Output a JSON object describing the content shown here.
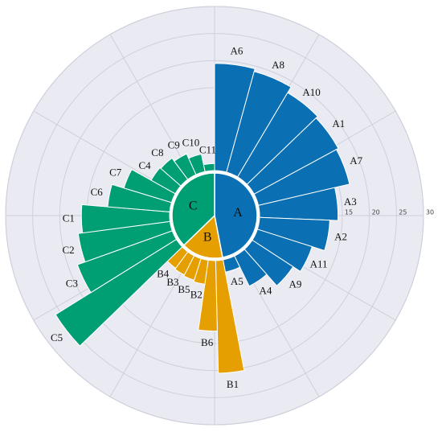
{
  "chart_data": {
    "type": "polar_bar",
    "ylim": [
      0,
      30
    ],
    "yticks": [
      15,
      20,
      25,
      30
    ],
    "groups": [
      {
        "name": "A",
        "color": "#0a6fb3",
        "categories": [
          "A6",
          "A8",
          "A10",
          "A1",
          "A7",
          "A3",
          "A2",
          "A11",
          "A9",
          "A4",
          "A5"
        ],
        "values": [
          19.5,
          19,
          17.8,
          17.4,
          17,
          14.2,
          12.7,
          10.3,
          8.7,
          5.9,
          2
        ]
      },
      {
        "name": "B",
        "color": "#e69f00",
        "categories": [
          "B1",
          "B6",
          "B2",
          "B5",
          "B3",
          "B4"
        ],
        "values": [
          20.5,
          12.7,
          4.2,
          3.9,
          3.7,
          3.5
        ]
      },
      {
        "name": "C",
        "color": "#009e73",
        "categories": [
          "C5",
          "C3",
          "C2",
          "C1",
          "C6",
          "C7",
          "C4",
          "C8",
          "C9",
          "C10",
          "C11"
        ],
        "values": [
          26,
          18.3,
          16.8,
          16,
          11.2,
          8.9,
          4.8,
          4.6,
          3.9,
          3,
          1
        ]
      }
    ]
  }
}
